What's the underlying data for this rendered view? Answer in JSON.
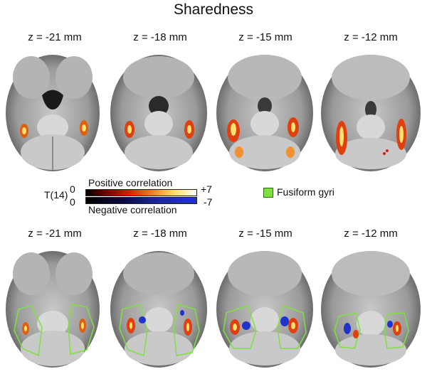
{
  "title": "Sharedness",
  "top_row": {
    "labels": [
      "z = -21 mm",
      "z = -18 mm",
      "z = -15 mm",
      "z = -12 mm"
    ]
  },
  "bottom_row": {
    "labels": [
      "z = -21 mm",
      "z = -18 mm",
      "z = -15 mm",
      "z = -12 mm"
    ]
  },
  "scale": {
    "stat_label": "T(14)",
    "pos_zero": "0",
    "neg_zero": "0",
    "pos_max": "+7",
    "neg_max": "-7",
    "pos_caption": "Positive correlation",
    "neg_caption": "Negative correlation"
  },
  "roi_legend": {
    "label": "Fusiform gyri",
    "color": "#7fe040"
  },
  "colors": {
    "brain_light": "#dcdcdc",
    "brain_mid": "#a8a8a8",
    "brain_dark": "#4a4a4a",
    "positive_low": "#b40000",
    "positive_high": "#fff8a0",
    "negative": "#2233cc"
  }
}
